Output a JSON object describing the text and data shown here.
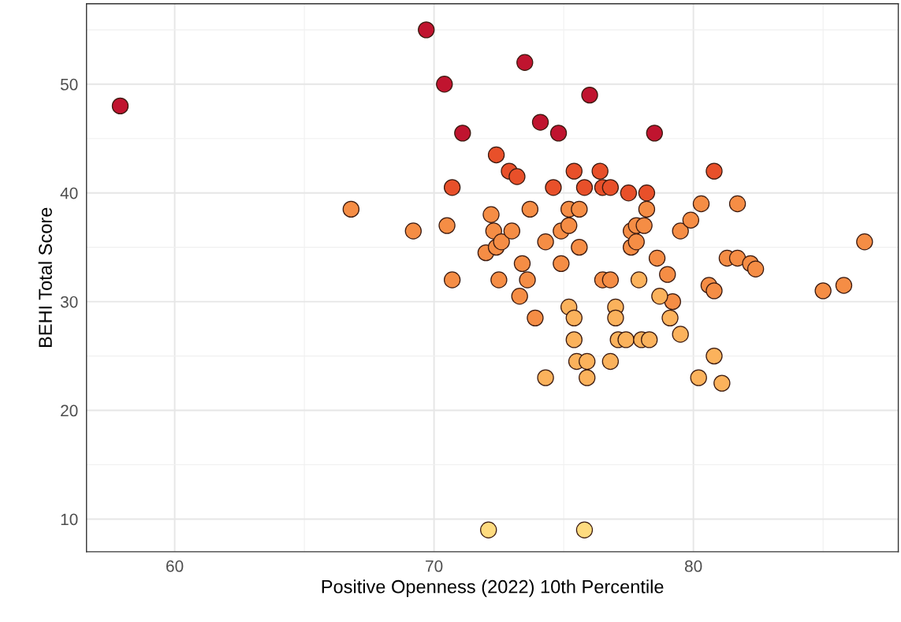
{
  "chart_data": {
    "type": "scatter",
    "xlabel": "Positive Openness (2022) 10th Percentile",
    "ylabel": "BEHI Total Score",
    "xlim": [
      56.6,
      87.9
    ],
    "ylim": [
      7.0,
      57.4
    ],
    "xticks": [
      60,
      70,
      80
    ],
    "yticks": [
      10,
      20,
      30,
      40,
      50
    ],
    "grid": true,
    "marker": "circle",
    "series": [
      {
        "x": [
          57.9,
          69.7,
          70.4,
          73.5,
          71.1,
          74.1,
          74.8,
          76.0,
          78.5
        ],
        "values": [
          48,
          55,
          50,
          52,
          45.5,
          46.5,
          45.5,
          49,
          45.5
        ],
        "color": "#c0142f"
      },
      {
        "x": [
          72.4,
          72.9,
          73.2,
          70.7,
          74.6,
          75.4,
          75.8,
          76.4,
          76.5,
          76.8,
          77.5,
          78.2,
          80.8
        ],
        "values": [
          43.5,
          42,
          41.5,
          40.5,
          40.5,
          42,
          40.5,
          42,
          40.5,
          40.5,
          40,
          40,
          42
        ],
        "color": "#e8502a"
      },
      {
        "x": [
          66.8,
          69.2,
          70.5,
          70.7,
          72.0,
          72.2,
          72.3,
          72.4,
          72.6,
          72.5,
          73.0,
          73.3,
          73.4,
          73.6,
          73.7,
          73.9,
          74.3,
          74.9,
          74.9,
          75.2,
          75.2,
          75.6,
          75.6,
          76.5,
          76.8,
          77.6,
          77.6,
          77.8,
          77.8,
          78.1,
          78.2,
          78.6,
          79.0,
          79.5,
          79.9,
          80.3,
          81.7,
          81.3,
          81.7,
          82.2,
          82.4,
          80.6,
          80.8,
          85.0,
          85.8,
          86.6,
          79.2
        ],
        "values": [
          38.5,
          36.5,
          37,
          32,
          34.5,
          38,
          36.5,
          35,
          35.5,
          32,
          36.5,
          30.5,
          33.5,
          32,
          38.5,
          28.5,
          35.5,
          36.5,
          33.5,
          37,
          38.5,
          38.5,
          35,
          32,
          32,
          35,
          36.5,
          35.5,
          37,
          37,
          38.5,
          34,
          32.5,
          36.5,
          37.5,
          39,
          39,
          34,
          34,
          33.5,
          33,
          31.5,
          31,
          31,
          31.5,
          35.5,
          30
        ],
        "color": "#f58d45"
      },
      {
        "x": [
          75.2,
          75.4,
          75.4,
          75.5,
          75.9,
          75.9,
          74.3,
          77.0,
          77.0,
          77.1,
          77.4,
          76.8,
          77.9,
          78.0,
          78.3,
          78.7,
          79.1,
          79.5,
          80.2,
          80.8,
          81.1
        ],
        "values": [
          29.5,
          28.5,
          26.5,
          24.5,
          24.5,
          23,
          23,
          29.5,
          28.5,
          26.5,
          26.5,
          24.5,
          32,
          26.5,
          26.5,
          30.5,
          28.5,
          27,
          23,
          25,
          22.5
        ],
        "color": "#fbb25c"
      },
      {
        "x": [
          72.1,
          75.8
        ],
        "values": [
          9,
          9
        ],
        "color": "#fedb7f"
      }
    ]
  }
}
